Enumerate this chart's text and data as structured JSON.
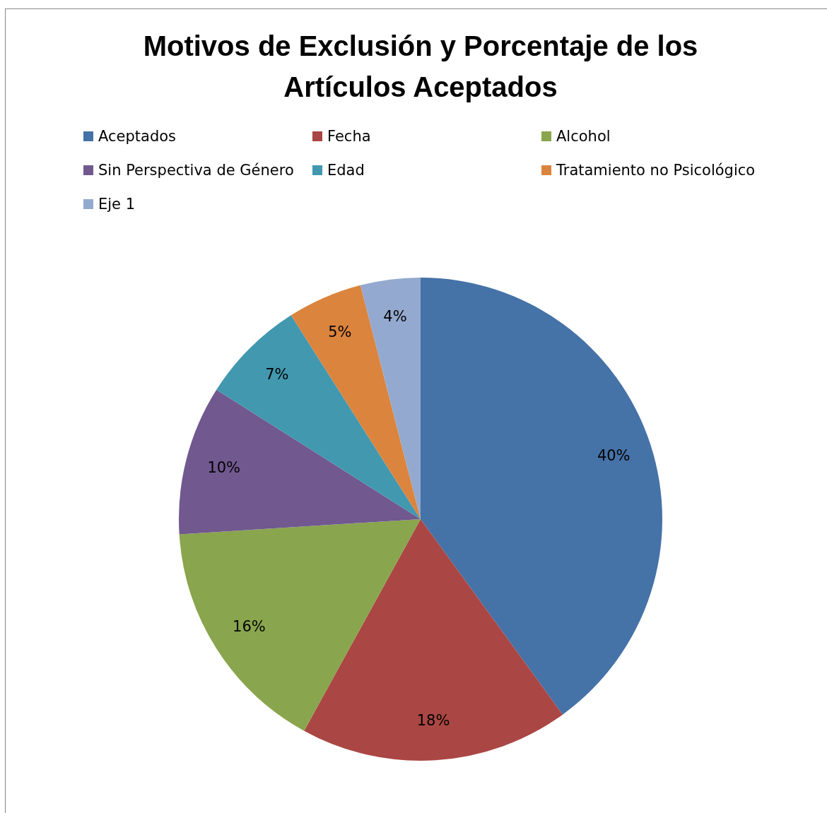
{
  "chart_data": {
    "type": "pie",
    "title": "Motivos de Exclusión y Porcentaje de los Artículos Aceptados",
    "categories": [
      "Aceptados",
      "Fecha",
      "Alcohol",
      "Sin Perspectiva de Género",
      "Edad",
      "Tratamiento no Psicológico",
      "Eje 1"
    ],
    "values": [
      40,
      18,
      16,
      10,
      7,
      5,
      4
    ],
    "colors": [
      "#4572a7",
      "#aa4643",
      "#89a54e",
      "#71588f",
      "#4198af",
      "#db843d",
      "#93a9cf"
    ],
    "value_labels": [
      "40%",
      "18%",
      "16%",
      "10%",
      "7%",
      "5%",
      "4%"
    ],
    "legend": "top"
  }
}
